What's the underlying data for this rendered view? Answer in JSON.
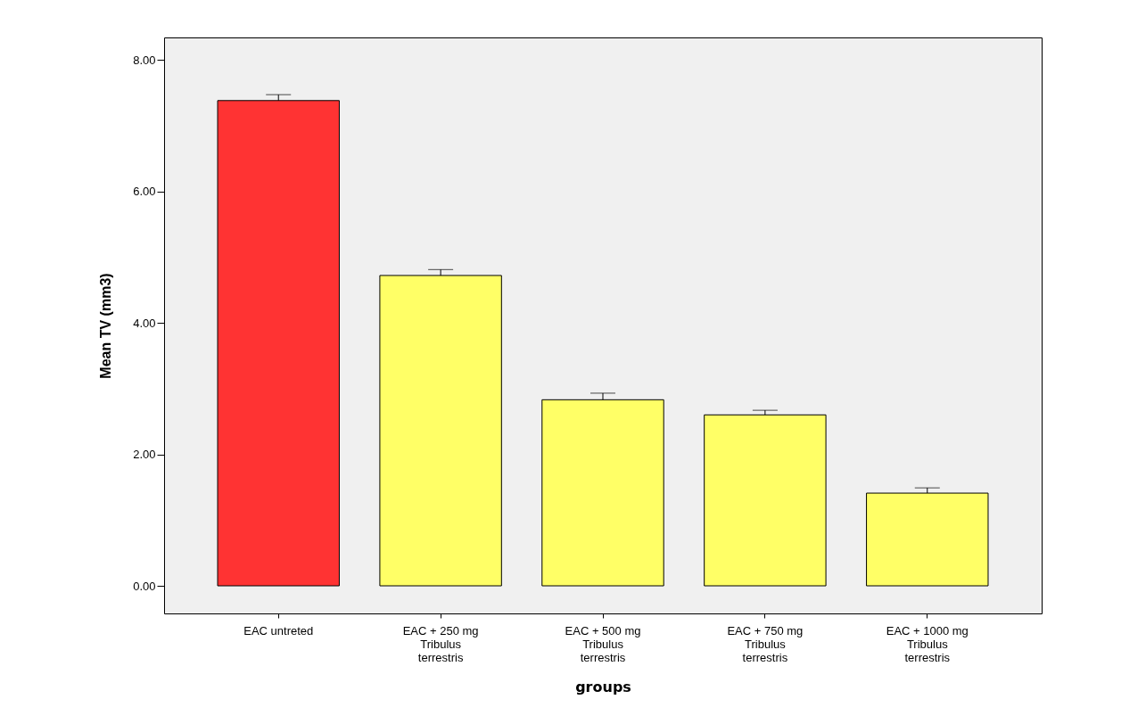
{
  "chart_data": {
    "type": "bar",
    "xlabel": "groups",
    "ylabel": "Mean TV (mm3)",
    "categories": [
      "EAC untreted",
      "EAC + 250 mg Tribulus terrestris",
      "EAC + 500 mg Tribulus terrestris",
      "EAC + 750 mg Tribulus terrestris",
      "EAC + 1000 mg Tribulus terrestris"
    ],
    "values": [
      7.38,
      4.72,
      2.83,
      2.6,
      1.41
    ],
    "errors": [
      0.09,
      0.09,
      0.1,
      0.07,
      0.08
    ],
    "colors": [
      "#ff3333",
      "#ffff66",
      "#ffff66",
      "#ffff66",
      "#ffff66"
    ],
    "ylim": [
      -0.42,
      8.34
    ],
    "yticks": [
      {
        "value": 0,
        "label": "0.00"
      },
      {
        "value": 2,
        "label": "2.00"
      },
      {
        "value": 4,
        "label": "4.00"
      },
      {
        "value": 6,
        "label": "6.00"
      },
      {
        "value": 8,
        "label": "8.00"
      }
    ],
    "grid": false
  }
}
